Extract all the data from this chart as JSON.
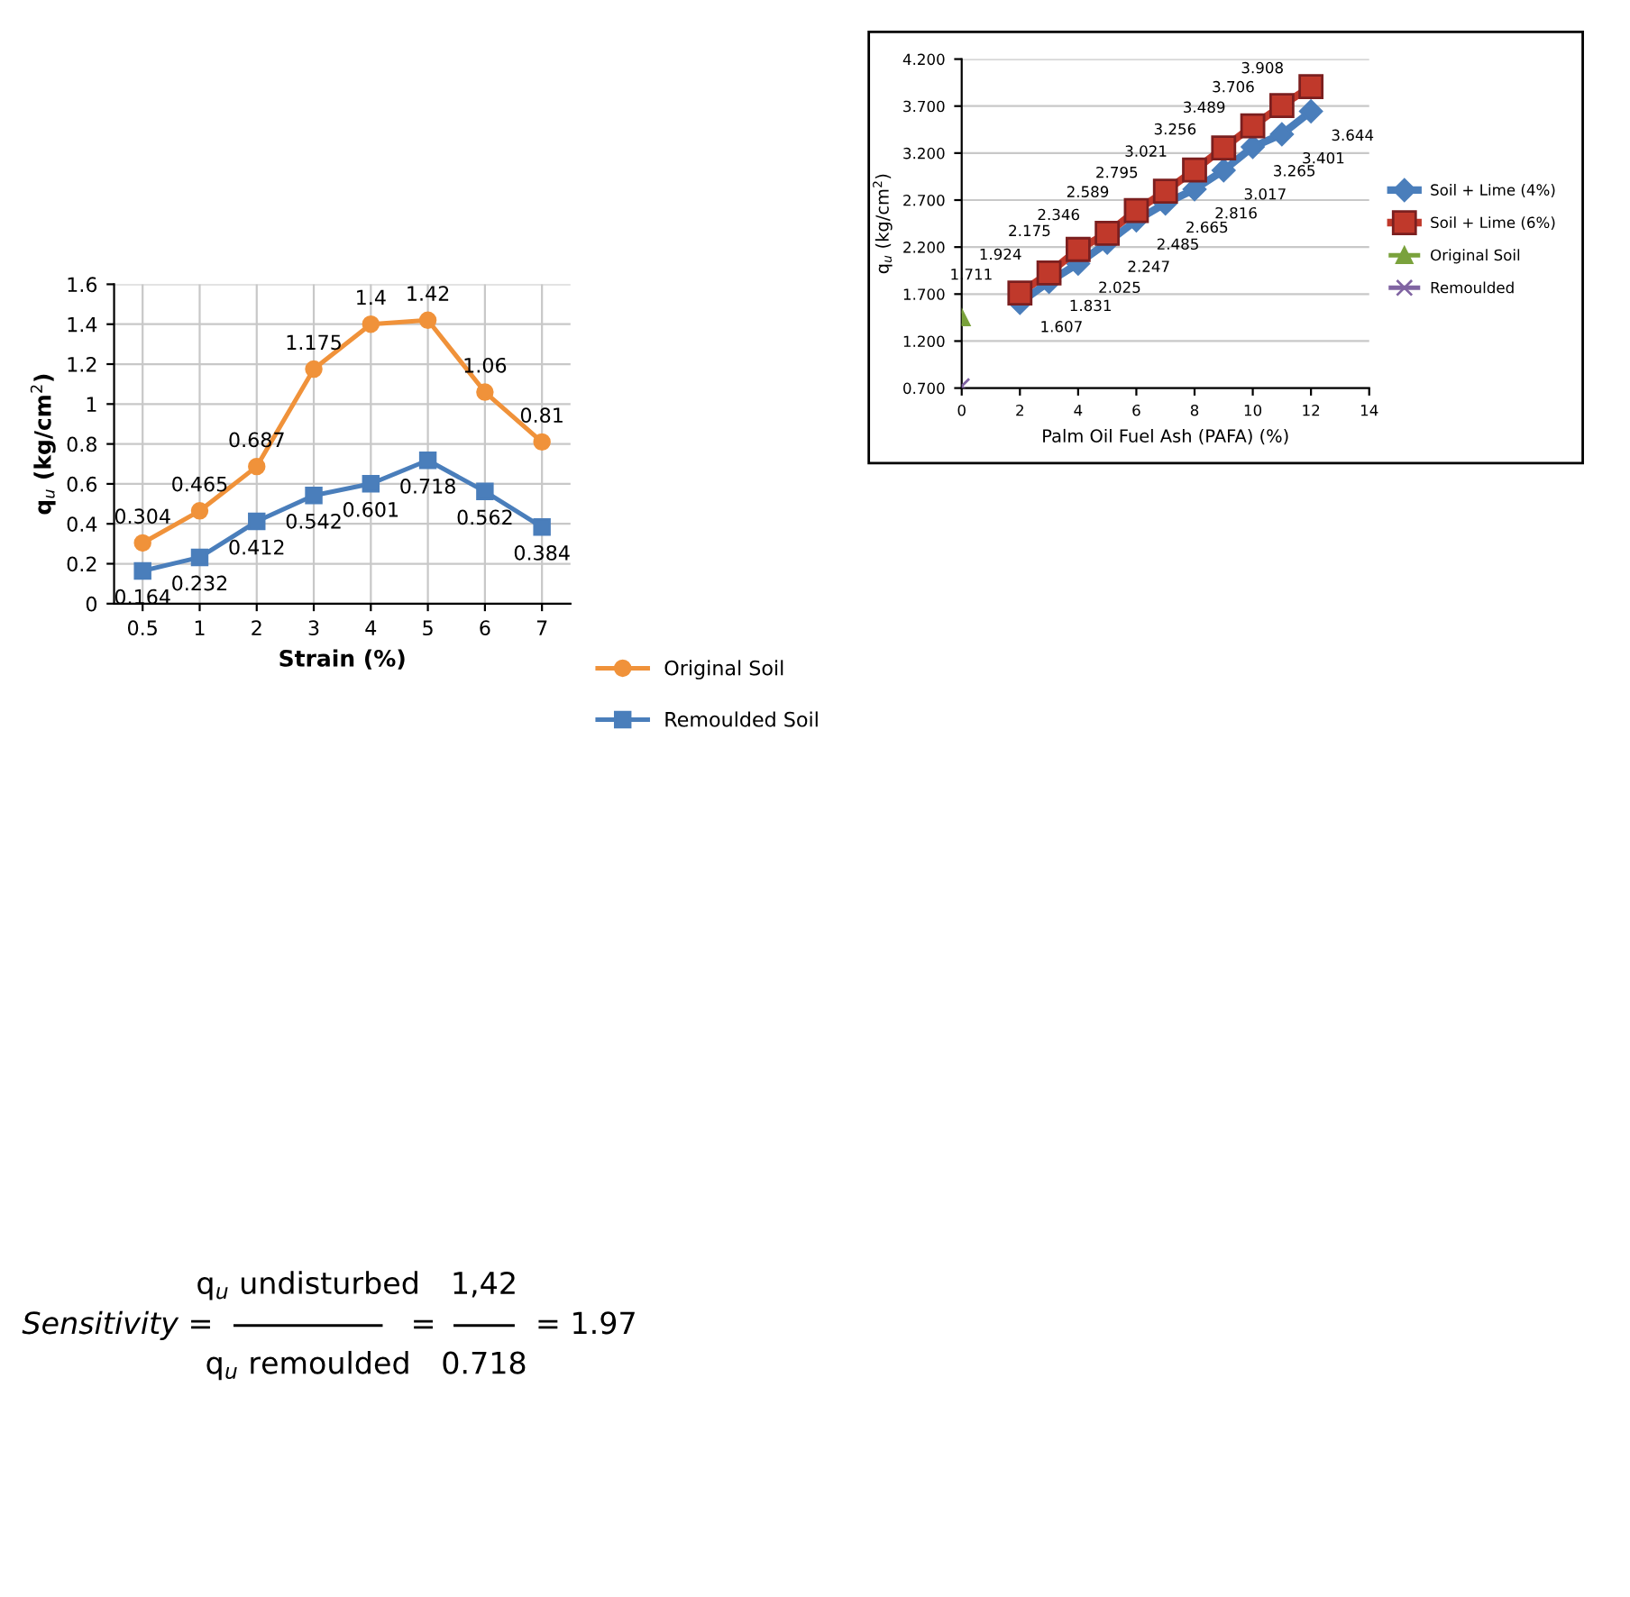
{
  "chart_data": [
    {
      "type": "line",
      "categories": [
        "0.5",
        "1",
        "2",
        "3",
        "4",
        "5",
        "6",
        "7"
      ],
      "xlabel": "Strain (%)",
      "ylabel": "q$_{u}$ (kg/cm$^{2}$)",
      "ylim": [
        0,
        1.6
      ],
      "yticks": [
        {
          "value": 0,
          "label": "0"
        },
        0.2,
        0.4,
        0.6,
        0.8,
        {
          "value": 1,
          "label": "1"
        },
        1.2,
        1.4,
        1.6
      ],
      "grid": true,
      "legend": "bottom right",
      "data_labels": true,
      "series": [
        {
          "name": "Original Soil",
          "color": "#f0923a",
          "marker": "circle",
          "values": [
            0.304,
            0.465,
            0.687,
            1.175,
            1.4,
            1.42,
            1.06,
            0.81
          ]
        },
        {
          "name": "Remoulded Soil",
          "color": "#4a7ebb",
          "marker": "square",
          "values": [
            0.164,
            0.232,
            0.412,
            0.542,
            0.601,
            0.718,
            0.562,
            0.384
          ]
        }
      ]
    },
    {
      "type": "line",
      "xlabel": "Palm Oil Fuel Ash (PAFA) (%)",
      "ylabel": "q$_{u}$ (kg/cm$^{2}$)",
      "xlim": [
        0,
        14
      ],
      "xticks": [
        0,
        2,
        4,
        6,
        8,
        10,
        12,
        14
      ],
      "ylim": [
        0.7,
        4.2
      ],
      "yticks": [
        {
          "value": 0.7,
          "label": "0.700"
        },
        {
          "value": 1.2,
          "label": "1.200"
        },
        {
          "value": 1.7,
          "label": "1.700"
        },
        {
          "value": 2.2,
          "label": "2.200"
        },
        {
          "value": 2.7,
          "label": "2.700"
        },
        {
          "value": 3.2,
          "label": "3.200"
        },
        {
          "value": 3.7,
          "label": "3.700"
        },
        {
          "value": 4.2,
          "label": "4.200"
        }
      ],
      "grid": "y",
      "legend": "right",
      "series": [
        {
          "name": "Soil + Lime (4%)",
          "color": "#4a7ebb",
          "marker": "diamond",
          "x": [
            2,
            3,
            4,
            5,
            6,
            7,
            8,
            9,
            10,
            11,
            12
          ],
          "values": [
            1.607,
            1.831,
            2.025,
            2.247,
            2.485,
            2.665,
            2.816,
            3.017,
            3.265,
            3.401,
            3.644
          ],
          "value_labels": [
            "1.607",
            "1.831",
            "2.025",
            "2.247",
            "2.485",
            "2.665",
            "2.816",
            "3.017",
            "3.265",
            "3.401",
            "3.644"
          ]
        },
        {
          "name": "Soil + Lime (6%)",
          "color": "#c0392b",
          "marker": "square",
          "x": [
            2,
            3,
            4,
            5,
            6,
            7,
            8,
            9,
            10,
            11,
            12
          ],
          "values": [
            1.711,
            1.924,
            2.175,
            2.346,
            2.589,
            2.795,
            3.021,
            3.256,
            3.489,
            3.706,
            3.908
          ],
          "value_labels": [
            "1.711",
            "1.924",
            "2.175",
            "2.346",
            "2.589",
            "2.795",
            "3.021",
            "3.256",
            "3.489",
            "3.706",
            "3.908"
          ]
        },
        {
          "name": "Original Soil",
          "color": "#7aa23c",
          "marker": "triangle",
          "x": [
            0
          ],
          "values": [
            1.45
          ]
        },
        {
          "name": "Remoulded",
          "color": "#8064a2",
          "marker": "cross",
          "x": [
            0
          ],
          "values": [
            0.72
          ]
        }
      ]
    },
    {
      "type": "other",
      "annotations": [
        "Sensitivity =",
        "q$_{u}$ undisturbed",
        "q$_{u}$ remoulded",
        "=",
        "1,42",
        "0.718",
        "= 1.97"
      ]
    }
  ]
}
